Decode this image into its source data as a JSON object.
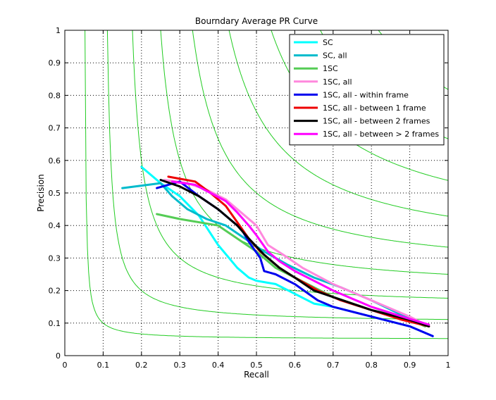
{
  "chart_data": {
    "type": "line",
    "title": "Bourndary Average PR Curve",
    "xlabel": "Recall",
    "ylabel": "Precision",
    "xlim": [
      0,
      1
    ],
    "ylim": [
      0,
      1
    ],
    "xticks": [
      "0",
      "0.1",
      "0.2",
      "0.3",
      "0.4",
      "0.5",
      "0.6",
      "0.7",
      "0.8",
      "0.9",
      "1"
    ],
    "yticks": [
      "0",
      "0.1",
      "0.2",
      "0.3",
      "0.4",
      "0.5",
      "0.6",
      "0.7",
      "0.8",
      "0.9",
      "1"
    ],
    "grid": true,
    "legend_position": "top-right",
    "iso_f_levels": [
      0.1,
      0.2,
      0.3,
      0.4,
      0.5,
      0.6,
      0.7,
      0.8,
      0.9
    ],
    "iso_f_color": "#22cc22",
    "series": [
      {
        "name": "SC",
        "color": "#00ffff",
        "x": [
          0.2,
          0.25,
          0.3,
          0.35,
          0.4,
          0.45,
          0.48,
          0.5,
          0.55,
          0.6,
          0.65,
          0.7,
          0.8,
          0.9,
          0.96
        ],
        "y": [
          0.58,
          0.53,
          0.49,
          0.43,
          0.34,
          0.27,
          0.24,
          0.23,
          0.22,
          0.19,
          0.16,
          0.15,
          0.12,
          0.09,
          0.06
        ]
      },
      {
        "name": "SC, all",
        "color": "#00bbcc",
        "x": [
          0.15,
          0.25,
          0.28,
          0.32,
          0.37,
          0.42,
          0.47,
          0.52,
          0.58,
          0.65,
          0.72,
          0.8,
          0.87,
          0.94
        ],
        "y": [
          0.515,
          0.53,
          0.49,
          0.45,
          0.42,
          0.4,
          0.36,
          0.32,
          0.28,
          0.24,
          0.21,
          0.17,
          0.13,
          0.09
        ]
      },
      {
        "name": "1SC",
        "color": "#55cc55",
        "x": [
          0.24,
          0.3,
          0.4,
          0.45,
          0.5,
          0.55,
          0.6,
          0.65,
          0.7,
          0.8,
          0.88,
          0.94
        ],
        "y": [
          0.435,
          0.42,
          0.4,
          0.36,
          0.32,
          0.27,
          0.24,
          0.21,
          0.18,
          0.14,
          0.12,
          0.09
        ]
      },
      {
        "name": "1SC, all",
        "color": "#ff88dd",
        "x": [
          0.26,
          0.32,
          0.37,
          0.42,
          0.46,
          0.5,
          0.53,
          0.57,
          0.62,
          0.7,
          0.8,
          0.9,
          0.95
        ],
        "y": [
          0.54,
          0.53,
          0.51,
          0.48,
          0.44,
          0.4,
          0.34,
          0.31,
          0.27,
          0.22,
          0.17,
          0.12,
          0.09
        ]
      },
      {
        "name": "1SC, all - within frame",
        "color": "#0000ee",
        "x": [
          0.24,
          0.3,
          0.35,
          0.4,
          0.43,
          0.46,
          0.48,
          0.51,
          0.52,
          0.55,
          0.6,
          0.66,
          0.7,
          0.8,
          0.9,
          0.96
        ],
        "y": [
          0.515,
          0.535,
          0.49,
          0.45,
          0.42,
          0.39,
          0.35,
          0.3,
          0.26,
          0.25,
          0.22,
          0.17,
          0.15,
          0.12,
          0.09,
          0.06
        ]
      },
      {
        "name": "1SC, all - between 1 frame",
        "color": "#ee0000",
        "x": [
          0.27,
          0.34,
          0.38,
          0.42,
          0.45,
          0.48,
          0.51,
          0.53,
          0.56,
          0.6,
          0.66,
          0.72,
          0.8,
          0.88,
          0.95
        ],
        "y": [
          0.55,
          0.535,
          0.5,
          0.46,
          0.41,
          0.36,
          0.32,
          0.3,
          0.27,
          0.24,
          0.2,
          0.17,
          0.14,
          0.11,
          0.09
        ]
      },
      {
        "name": "1SC, all - between 2 frames",
        "color": "#000000",
        "x": [
          0.25,
          0.3,
          0.35,
          0.4,
          0.45,
          0.48,
          0.52,
          0.56,
          0.6,
          0.65,
          0.7,
          0.8,
          0.9,
          0.95
        ],
        "y": [
          0.54,
          0.52,
          0.49,
          0.45,
          0.4,
          0.36,
          0.31,
          0.27,
          0.24,
          0.2,
          0.18,
          0.14,
          0.11,
          0.09
        ]
      },
      {
        "name": "1SC, all - between > 2 frames",
        "color": "#ff00ff",
        "x": [
          0.28,
          0.34,
          0.38,
          0.42,
          0.45,
          0.48,
          0.5,
          0.53,
          0.56,
          0.6,
          0.65,
          0.7,
          0.8,
          0.88,
          0.95
        ],
        "y": [
          0.535,
          0.525,
          0.5,
          0.475,
          0.44,
          0.4,
          0.37,
          0.32,
          0.29,
          0.26,
          0.23,
          0.2,
          0.15,
          0.12,
          0.095
        ]
      }
    ]
  }
}
